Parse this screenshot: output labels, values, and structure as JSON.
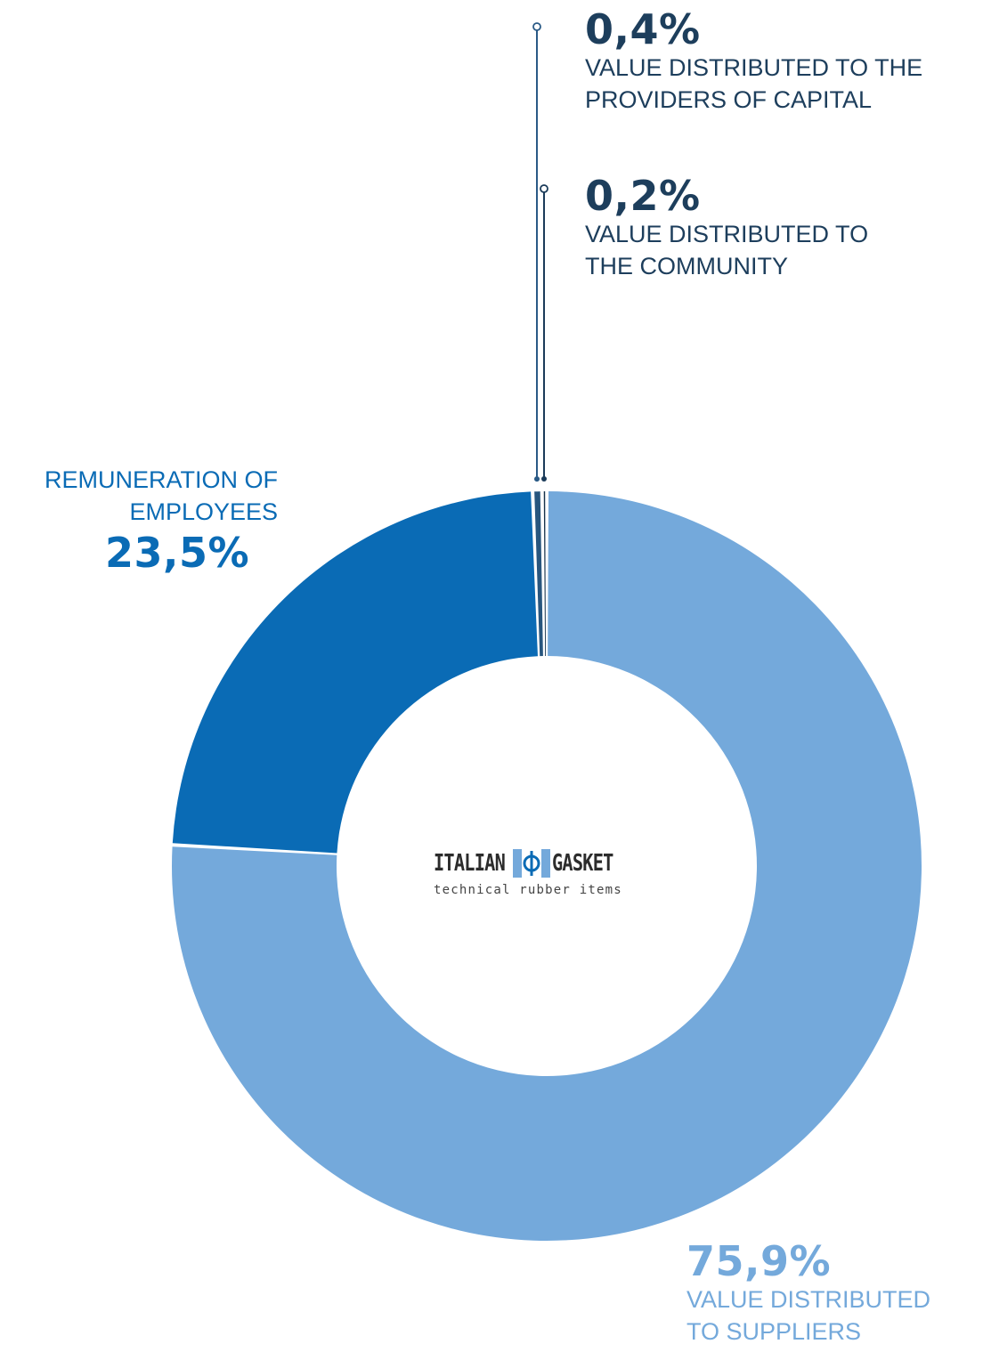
{
  "chart_data": {
    "type": "pie",
    "donut": true,
    "slices": [
      {
        "key": "suppliers",
        "label": "VALUE DISTRIBUTED TO SUPPLIERS",
        "value": 75.9,
        "display": "75,9%",
        "color": "#74a9db"
      },
      {
        "key": "employees",
        "label": "REMUNERATION OF EMPLOYEES",
        "value": 23.5,
        "display": "23,5%",
        "color": "#0a6bb5"
      },
      {
        "key": "capital",
        "label": "VALUE DISTRIBUTED TO THE PROVIDERS OF CAPITAL",
        "value": 0.4,
        "display": "0,4%",
        "color": "#28567e"
      },
      {
        "key": "community",
        "label": "VALUE DISTRIBUTED TO THE COMMUNITY",
        "value": 0.2,
        "display": "0,2%",
        "color": "#16324b"
      }
    ]
  },
  "labels": {
    "capital": {
      "percent": "0,4%",
      "line1": "VALUE DISTRIBUTED TO THE",
      "line2": "PROVIDERS OF CAPITAL"
    },
    "community": {
      "percent": "0,2%",
      "line1": "VALUE DISTRIBUTED TO",
      "line2": "THE COMMUNITY"
    },
    "employees": {
      "percent": "23,5%",
      "line1": "REMUNERATION OF",
      "line2": "EMPLOYEES"
    },
    "suppliers": {
      "percent": "75,9%",
      "line1": "VALUE DISTRIBUTED",
      "line2": "TO SUPPLIERS"
    }
  },
  "colors": {
    "dark_navy": "#1d3e5c",
    "mid_blue": "#0a6bb5",
    "light_blue": "#74a9db",
    "leader_capital": "#2a5a86",
    "leader_community": "#1b3b59"
  },
  "logo": {
    "word_left": "ITALIAN",
    "word_right": "GASKET",
    "tagline": "technical rubber items"
  }
}
